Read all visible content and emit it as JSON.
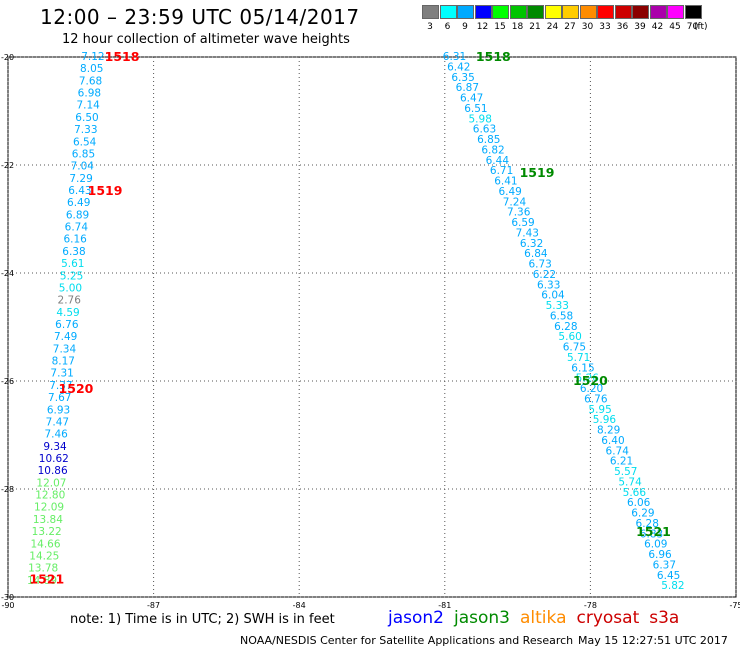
{
  "header": {
    "title": "12:00 – 23:59 UTC 05/14/2017",
    "subtitle": "12 hour collection of altimeter wave heights"
  },
  "legend": {
    "unit_label": "(ft)",
    "swatches": [
      {
        "label": "3",
        "color": "#7f7f7f"
      },
      {
        "label": "6",
        "color": "#00ffff"
      },
      {
        "label": "9",
        "color": "#00aaff"
      },
      {
        "label": "12",
        "color": "#0000ff"
      },
      {
        "label": "15",
        "color": "#00ff00"
      },
      {
        "label": "18",
        "color": "#00c400"
      },
      {
        "label": "21",
        "color": "#008a00"
      },
      {
        "label": "24",
        "color": "#ffff00"
      },
      {
        "label": "27",
        "color": "#ffcc00"
      },
      {
        "label": "30",
        "color": "#ff8c00"
      },
      {
        "label": "33",
        "color": "#ff0000"
      },
      {
        "label": "36",
        "color": "#cc0000"
      },
      {
        "label": "39",
        "color": "#8b0000"
      },
      {
        "label": "42",
        "color": "#aa00aa"
      },
      {
        "label": "45",
        "color": "#ff00ff"
      },
      {
        "label": "70",
        "color": "#000000"
      }
    ]
  },
  "chart_data": {
    "type": "scatter",
    "title": "12:00 – 23:59 UTC 05/14/2017",
    "subtitle": "12 hour collection of altimeter wave heights",
    "xlim": [
      -90,
      -75
    ],
    "ylim": [
      -30,
      -20
    ],
    "x_ticks": [
      "-90",
      "-87",
      "-84",
      "-81",
      "-78",
      "-75"
    ],
    "y_ticks": [
      "-20",
      "-22",
      "-24",
      "-26",
      "-28",
      "-30"
    ],
    "grid": true,
    "series": [
      {
        "name": "cryosat",
        "label_color": "#ff0000",
        "start_lon": -88.25,
        "start_lat": -20.0,
        "end_lon": -89.3,
        "end_lat": -29.7,
        "values": [
          "7.12",
          "8.05",
          "7.68",
          "6.98",
          "7.14",
          "6.50",
          "7.33",
          "6.54",
          "6.85",
          "7.04",
          "7.29",
          "6.43",
          "6.49",
          "6.89",
          "6.74",
          "6.16",
          "6.38",
          "5.61",
          "5.25",
          "5.00",
          "2.76",
          "4.59",
          "6.76",
          "7.49",
          "7.34",
          "8.17",
          "7.31",
          "7.37",
          "7.67",
          "6.93",
          "7.47",
          "7.46",
          "9.34",
          "10.62",
          "10.86",
          "12.07",
          "12.80",
          "12.09",
          "13.84",
          "13.22",
          "14.66",
          "14.25",
          "13.78",
          "14.89"
        ],
        "colors": [
          "#00aaff",
          "#00aaff",
          "#00aaff",
          "#00aaff",
          "#00aaff",
          "#00aaff",
          "#00aaff",
          "#00aaff",
          "#00aaff",
          "#00aaff",
          "#00aaff",
          "#00aaff",
          "#00aaff",
          "#00aaff",
          "#00aaff",
          "#00aaff",
          "#00aaff",
          "#00ddee",
          "#00ddee",
          "#00ddee",
          "#7f7f7f",
          "#00ddee",
          "#00aaff",
          "#00aaff",
          "#00aaff",
          "#00aaff",
          "#00aaff",
          "#00aaff",
          "#00aaff",
          "#00aaff",
          "#00aaff",
          "#00aaff",
          "#0000cc",
          "#0000cc",
          "#0000cc",
          "#66ee66",
          "#66ee66",
          "#66ee66",
          "#66ee66",
          "#66ee66",
          "#66ee66",
          "#66ee66",
          "#66ee66",
          "#66ee66"
        ],
        "time_labels": [
          {
            "text": "1518",
            "lon": -87.65,
            "lat": -20.0
          },
          {
            "text": "1519",
            "lon": -88.0,
            "lat": -22.48
          },
          {
            "text": "1520",
            "lon": -88.6,
            "lat": -26.15
          },
          {
            "text": "1521",
            "lon": -89.2,
            "lat": -29.68
          }
        ]
      },
      {
        "name": "jason3",
        "label_color": "#008a00",
        "start_lon": -80.8,
        "start_lat": -20.0,
        "end_lon": -76.3,
        "end_lat": -29.8,
        "values": [
          "6.31",
          "6.42",
          "6.35",
          "6.87",
          "6.47",
          "6.51",
          "5.98",
          "6.63",
          "6.85",
          "6.82",
          "6.44",
          "6.71",
          "6.41",
          "6.49",
          "7.24",
          "7.36",
          "6.59",
          "7.43",
          "6.32",
          "6.84",
          "6.73",
          "6.22",
          "6.33",
          "6.04",
          "5.33",
          "6.58",
          "6.28",
          "5.60",
          "6.75",
          "5.71",
          "6.15",
          "5.26",
          "6.20",
          "6.76",
          "5.95",
          "5.96",
          "8.29",
          "6.40",
          "6.74",
          "6.21",
          "5.57",
          "5.74",
          "5.66",
          "6.06",
          "6.29",
          "6.28",
          "6.83",
          "6.09",
          "6.96",
          "6.37",
          "6.45",
          "5.82"
        ],
        "colors": [
          "#00aaff",
          "#00aaff",
          "#00aaff",
          "#00aaff",
          "#00aaff",
          "#00aaff",
          "#00ddee",
          "#00aaff",
          "#00aaff",
          "#00aaff",
          "#00aaff",
          "#00aaff",
          "#00aaff",
          "#00aaff",
          "#00aaff",
          "#00aaff",
          "#00aaff",
          "#00aaff",
          "#00aaff",
          "#00aaff",
          "#00aaff",
          "#00aaff",
          "#00aaff",
          "#00aaff",
          "#00ddee",
          "#00aaff",
          "#00aaff",
          "#00ddee",
          "#00aaff",
          "#00ddee",
          "#00aaff",
          "#00ddee",
          "#00aaff",
          "#00aaff",
          "#00ddee",
          "#00ddee",
          "#00aaff",
          "#00aaff",
          "#00aaff",
          "#00aaff",
          "#00ddee",
          "#00ddee",
          "#00ddee",
          "#00aaff",
          "#00aaff",
          "#00aaff",
          "#00aaff",
          "#00aaff",
          "#00aaff",
          "#00aaff",
          "#00aaff",
          "#00ddee"
        ],
        "time_labels": [
          {
            "text": "1518",
            "lon": -80.0,
            "lat": -20.0
          },
          {
            "text": "1519",
            "lon": -79.1,
            "lat": -22.15
          },
          {
            "text": "1520",
            "lon": -78.0,
            "lat": -26.0
          },
          {
            "text": "1521",
            "lon": -76.7,
            "lat": -28.8
          }
        ]
      }
    ]
  },
  "footer": {
    "note": "note:  1) Time is in UTC;  2) SWH is in feet",
    "missions": [
      {
        "name": "jason2",
        "color": "#0000ff"
      },
      {
        "name": "jason3",
        "color": "#008a00"
      },
      {
        "name": "altika",
        "color": "#ff8c00"
      },
      {
        "name": "cryosat",
        "color": "#cc0000"
      },
      {
        "name": "s3a",
        "color": "#cc0000"
      }
    ],
    "credit": "NOAA/NESDIS Center for Satellite Applications and Research",
    "timestamp": "May 15 12:27:51 UTC 2017"
  }
}
